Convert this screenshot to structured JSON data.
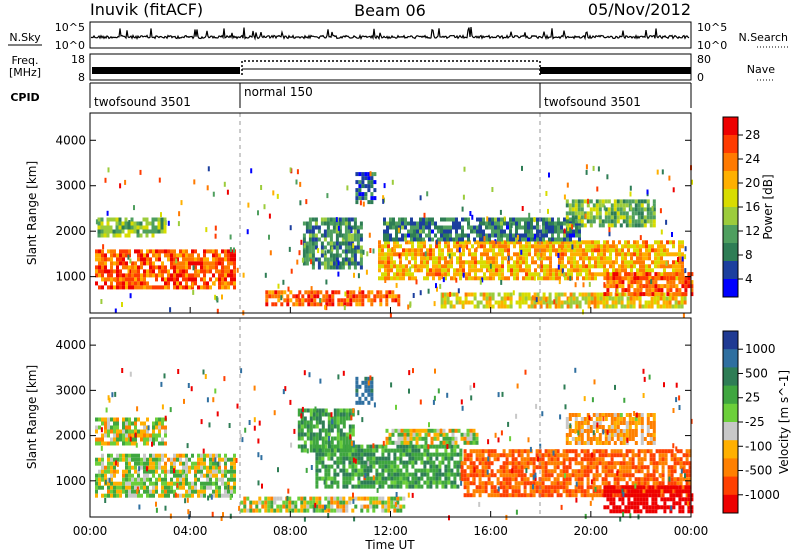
{
  "header": {
    "station": "Inuvik (fitACF)",
    "beam": "Beam 06",
    "date": "05/Nov/2012"
  },
  "panels": {
    "nsky_label": "N.Sky",
    "nsky_ticks": [
      "10^5",
      "10^0"
    ],
    "nsearch_label": "N.Search",
    "nsearch_ticks": [
      "10^5",
      "10^0"
    ],
    "freq_label_line1": "Freq.",
    "freq_label_line2": "[MHz]",
    "freq_ticks": [
      "18",
      "8"
    ],
    "nave_label": "Nave",
    "nave_ticks": [
      "80",
      "0"
    ],
    "cpid_label": "CPID",
    "cpid_modes": [
      {
        "name": "twofsound 3501",
        "start_hour": 0,
        "end_hour": 6
      },
      {
        "name": "normal 150",
        "start_hour": 6,
        "end_hour": 18
      },
      {
        "name": "twofsound 3501",
        "start_hour": 18,
        "end_hour": 24
      }
    ]
  },
  "power_colorbar": {
    "title": "Power [dB]",
    "ticks": [
      "28",
      "24",
      "20",
      "16",
      "12",
      "8",
      "4"
    ],
    "colors": [
      "#ee0000",
      "#ff3b00",
      "#ff7a00",
      "#ffb000",
      "#d8dc00",
      "#9ccc3c",
      "#4f9f5f",
      "#2e7d55",
      "#1c3f9e",
      "#0000ff"
    ]
  },
  "velocity_colorbar": {
    "title": "Velocity [m s^-1]",
    "ticks": [
      "1000",
      "500",
      "25",
      "-25",
      "-100",
      "-500",
      "-1000"
    ],
    "colors": [
      "#1f3a93",
      "#2f6fa0",
      "#2e7d55",
      "#3fa63f",
      "#6ccf3a",
      "#c8c8c8",
      "#ffb000",
      "#ff8000",
      "#ff4000",
      "#ee0000"
    ]
  },
  "chart_data": [
    {
      "type": "heatmap",
      "name": "power",
      "ylabel": "Slant Range [km]",
      "yticks": [
        "4000",
        "3000",
        "2000",
        "1000"
      ],
      "ylim": [
        200,
        4600
      ],
      "xlim": [
        0,
        24
      ],
      "regions": [
        {
          "start_hour": 0.2,
          "end_hour": 5.8,
          "range_low_km": 750,
          "range_high_km": 1600,
          "level_db": 26
        },
        {
          "start_hour": 0.3,
          "end_hour": 3.0,
          "range_low_km": 1900,
          "range_high_km": 2300,
          "level_db": 13
        },
        {
          "start_hour": 7.0,
          "end_hour": 12.3,
          "range_low_km": 350,
          "range_high_km": 700,
          "level_db": 25
        },
        {
          "start_hour": 8.5,
          "end_hour": 10.8,
          "range_low_km": 1200,
          "range_high_km": 2300,
          "level_db": 9
        },
        {
          "start_hour": 10.6,
          "end_hour": 11.4,
          "range_low_km": 2600,
          "range_high_km": 3300,
          "level_db": 6
        },
        {
          "start_hour": 11.5,
          "end_hour": 23.7,
          "range_low_km": 1000,
          "range_high_km": 1800,
          "level_db": 21
        },
        {
          "start_hour": 11.7,
          "end_hour": 19.5,
          "range_low_km": 1800,
          "range_high_km": 2300,
          "level_db": 8
        },
        {
          "start_hour": 14.0,
          "end_hour": 23.8,
          "range_low_km": 350,
          "range_high_km": 650,
          "level_db": 18
        },
        {
          "start_hour": 19.0,
          "end_hour": 22.5,
          "range_low_km": 2100,
          "range_high_km": 2700,
          "level_db": 13
        },
        {
          "start_hour": 20.5,
          "end_hour": 24.0,
          "range_low_km": 600,
          "range_high_km": 1100,
          "level_db": 26
        }
      ]
    },
    {
      "type": "heatmap",
      "name": "velocity",
      "ylabel": "Slant Range [km]",
      "yticks": [
        "4000",
        "3000",
        "2000",
        "1000"
      ],
      "xlabel": "Time UT",
      "xticks": [
        "00:00",
        "04:00",
        "08:00",
        "12:00",
        "16:00",
        "20:00",
        "00:00"
      ],
      "ylim": [
        200,
        4600
      ],
      "xlim": [
        0,
        24
      ],
      "regions": [
        {
          "start_hour": 0.2,
          "end_hour": 5.8,
          "range_low_km": 700,
          "range_high_km": 1600,
          "velocity": 40
        },
        {
          "start_hour": 0.2,
          "end_hour": 3.0,
          "range_low_km": 1800,
          "range_high_km": 2400,
          "velocity": 0
        },
        {
          "start_hour": 6.0,
          "end_hour": 12.5,
          "range_low_km": 300,
          "range_high_km": 650,
          "velocity": 0
        },
        {
          "start_hour": 9.0,
          "end_hour": 14.8,
          "range_low_km": 900,
          "range_high_km": 1800,
          "velocity": 200
        },
        {
          "start_hour": 8.3,
          "end_hour": 10.5,
          "range_low_km": 1700,
          "range_high_km": 2600,
          "velocity": 200
        },
        {
          "start_hour": 10.6,
          "end_hour": 11.3,
          "range_low_km": 2700,
          "range_high_km": 3300,
          "velocity": 600
        },
        {
          "start_hour": 14.8,
          "end_hour": 24.0,
          "range_low_km": 700,
          "range_high_km": 1700,
          "velocity": -300
        },
        {
          "start_hour": 11.8,
          "end_hour": 15.5,
          "range_low_km": 1850,
          "range_high_km": 2150,
          "velocity": 0
        },
        {
          "start_hour": 19.0,
          "end_hour": 22.5,
          "range_low_km": 1800,
          "range_high_km": 2500,
          "velocity": -120
        },
        {
          "start_hour": 20.5,
          "end_hour": 24.0,
          "range_low_km": 300,
          "range_high_km": 900,
          "velocity": -700
        }
      ]
    }
  ]
}
